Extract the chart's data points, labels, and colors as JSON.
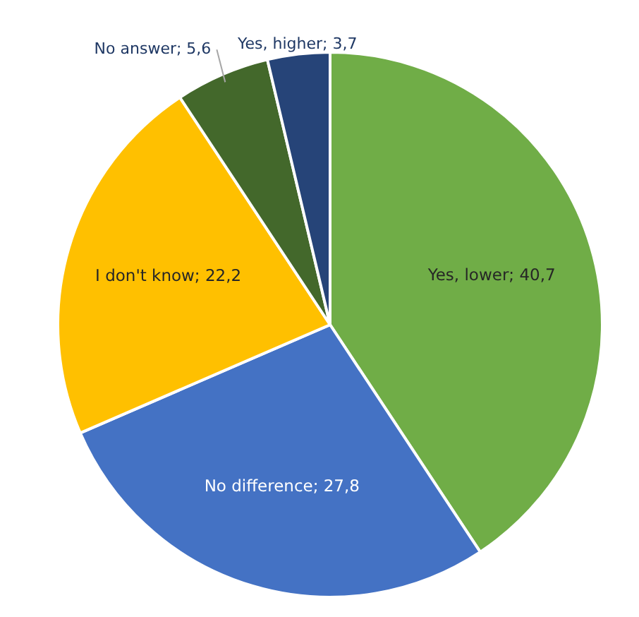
{
  "chart_data": {
    "type": "pie",
    "categories": [
      "Yes, lower",
      "No difference",
      "I don't know",
      "No answer",
      "Yes, higher"
    ],
    "values": [
      40.7,
      27.8,
      22.2,
      5.6,
      3.7
    ],
    "colors": [
      "#70ad47",
      "#4472c4",
      "#ffc000",
      "#43682b",
      "#264478"
    ],
    "value_labels": [
      "40,7",
      "27,8",
      "22,2",
      "5,6",
      "3,7"
    ]
  }
}
